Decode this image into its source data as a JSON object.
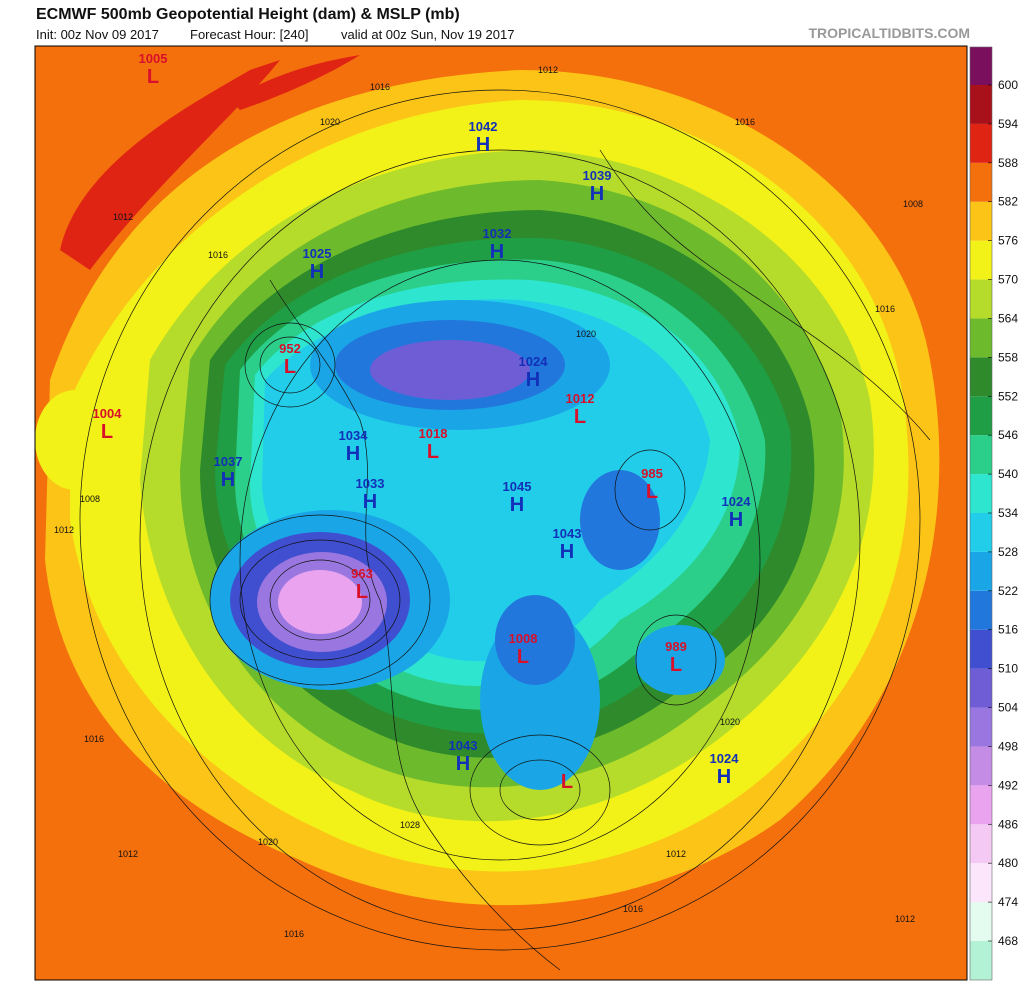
{
  "header": {
    "title": "ECMWF 500mb Geopotential Height (dam) & MSLP (mb)",
    "init": "Init: 00z Nov 09 2017",
    "forecast_hour": "Forecast Hour: [240]",
    "valid": "valid at 00z Sun, Nov 19 2017",
    "site": "TROPICALTIDBITS.COM"
  },
  "colorbar": {
    "ticks": [
      468,
      474,
      480,
      486,
      492,
      498,
      504,
      510,
      516,
      522,
      528,
      534,
      540,
      546,
      552,
      558,
      564,
      570,
      576,
      582,
      588,
      594,
      600
    ],
    "colors": [
      "#b4f2d6",
      "#e4fbf0",
      "#fbe6fb",
      "#f4c9f4",
      "#eaa3ee",
      "#c58ce6",
      "#9a77e0",
      "#6f5dd6",
      "#3f4fcf",
      "#2277dc",
      "#1aa6e6",
      "#22cdea",
      "#2ee6cf",
      "#2bcf8a",
      "#1f9e45",
      "#2e8a2a",
      "#6dbb2c",
      "#b5dc2a",
      "#f2f218",
      "#fbc416",
      "#f4700d",
      "#df2414",
      "#a8101a",
      "#7a0f5e"
    ]
  },
  "centers": [
    {
      "letter": "L",
      "value": "1005"
    },
    {
      "letter": "H",
      "value": "1042"
    },
    {
      "letter": "H",
      "value": "1039"
    },
    {
      "letter": "H",
      "value": "1032"
    },
    {
      "letter": "H",
      "value": "1025"
    },
    {
      "letter": "L",
      "value": "952"
    },
    {
      "letter": "H",
      "value": "1024"
    },
    {
      "letter": "L",
      "value": "1012"
    },
    {
      "letter": "L",
      "value": "1004"
    },
    {
      "letter": "H",
      "value": "1037"
    },
    {
      "letter": "H",
      "value": "1034"
    },
    {
      "letter": "L",
      "value": "1018"
    },
    {
      "letter": "L",
      "value": "985"
    },
    {
      "letter": "H",
      "value": "1045"
    },
    {
      "letter": "H",
      "value": "1024"
    },
    {
      "letter": "H",
      "value": "1033"
    },
    {
      "letter": "H",
      "value": "1043"
    },
    {
      "letter": "L",
      "value": "963"
    },
    {
      "letter": "L",
      "value": "1008"
    },
    {
      "letter": "L",
      "value": "989"
    },
    {
      "letter": "H",
      "value": "1043"
    },
    {
      "letter": "H",
      "value": "1024"
    },
    {
      "letter": "L"
    }
  ],
  "isobar_labels": [
    "1012",
    "1016",
    "1012",
    "1020",
    "1016",
    "1008",
    "1012",
    "1016",
    "1020",
    "1028",
    "1016",
    "1012",
    "1016",
    "1020",
    "1012",
    "1016",
    "1008",
    "1020",
    "1012",
    "1016"
  ]
}
